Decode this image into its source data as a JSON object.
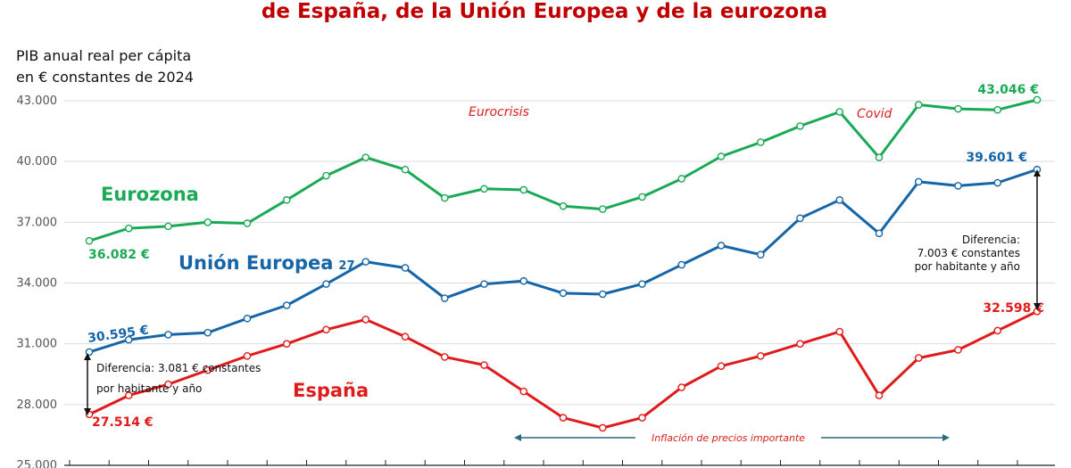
{
  "chart_data": {
    "type": "line",
    "title": "de España, de la Unión Europea y de la eurozona",
    "ylabel_line1": "PIB anual real per cápita",
    "ylabel_line2": "en € constantes de 2024",
    "ylim": [
      25000,
      43000
    ],
    "yticks": [
      "43.000",
      "40.000",
      "37.000",
      "34.000",
      "31.000",
      "28.000",
      "25.000"
    ],
    "grid": true,
    "series": [
      {
        "name": "Eurozona",
        "color": "#1aaa55",
        "values": [
          36082,
          36700,
          36800,
          37000,
          36950,
          38100,
          39300,
          40200,
          39600,
          38200,
          38650,
          38600,
          37800,
          37650,
          38250,
          39150,
          40250,
          40950,
          41750,
          42450,
          40200,
          42800,
          42600,
          42550,
          43046
        ]
      },
      {
        "name": "Unión Europea",
        "name_suffix": "27",
        "color": "#1565a8",
        "values": [
          30595,
          31200,
          31450,
          31550,
          32250,
          32900,
          33950,
          35050,
          34750,
          33250,
          33950,
          34100,
          33500,
          33450,
          33950,
          34900,
          35850,
          35400,
          37200,
          38100,
          36450,
          39000,
          38800,
          38950,
          39601
        ]
      },
      {
        "name": "España",
        "color": "#e01b1b",
        "values": [
          27514,
          28450,
          29000,
          29700,
          30400,
          31000,
          31700,
          32200,
          31350,
          30350,
          29950,
          28650,
          27350,
          26850,
          27350,
          28850,
          29900,
          30400,
          31000,
          31600,
          28450,
          30300,
          30700,
          31650,
          32598
        ]
      }
    ],
    "value_labels": {
      "eurozona_start": "36.082 €",
      "eurozona_end": "43.046  €",
      "ue_start": "30.595  €",
      "ue_end": "39.601 €",
      "espana_start": "27.514 €",
      "espana_end": "32.598 €"
    },
    "annotations": {
      "eurocrisis": "Eurocrisis",
      "covid": "Covid",
      "inflation": "Inflación de precios importante",
      "diff_start_line1": "Diferencia: 3.081 € constantes",
      "diff_start_line2": "por habitante y año",
      "diff_end_line1": "Diferencia:",
      "diff_end_line2": "7.003 € constantes",
      "diff_end_line3": "por habitante y año"
    }
  }
}
